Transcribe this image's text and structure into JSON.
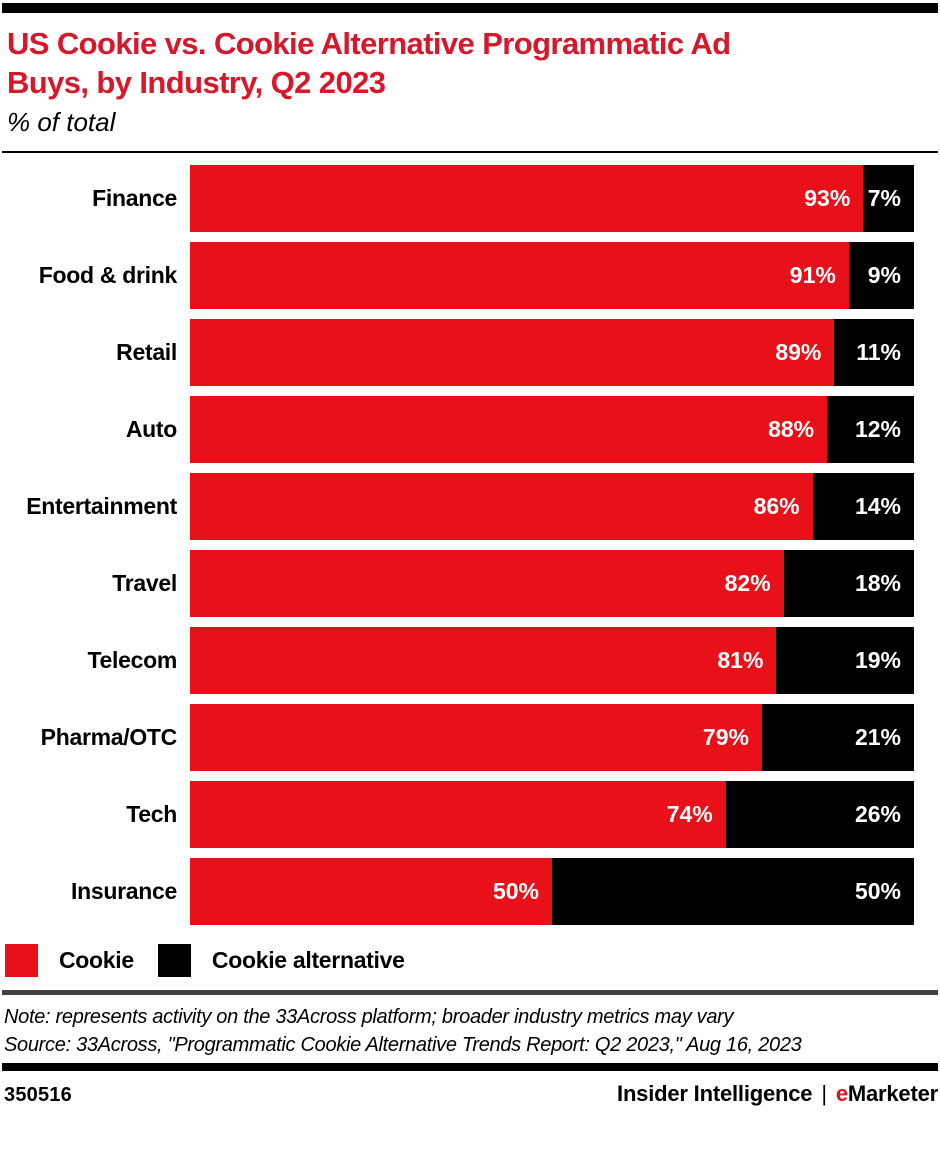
{
  "page": {
    "title": "US Cookie vs. Cookie Alternative Programmatic Ad Buys, by Industry, Q2 2023",
    "title_lines": [
      "US Cookie vs. Cookie Alternative Programmatic Ad",
      "Buys, by Industry, Q2 2023"
    ],
    "subtitle": "% of total"
  },
  "colors": {
    "title_red": "#d7172a",
    "cookie_red": "#e81019",
    "cookie_alternative_black": "#000000",
    "rule_gray": "#404040",
    "value_label_white": "#ffffff"
  },
  "chart_data": {
    "type": "bar",
    "orientation": "horizontal",
    "stacked": true,
    "unit": "%",
    "title": "US Cookie vs. Cookie Alternative Programmatic Ad Buys, by Industry, Q2 2023",
    "subtitle": "% of total",
    "categories": [
      "Finance",
      "Food & drink",
      "Retail",
      "Auto",
      "Entertainment",
      "Travel",
      "Telecom",
      "Pharma/OTC",
      "Tech",
      "Insurance"
    ],
    "series": [
      {
        "name": "Cookie",
        "color": "#e81019",
        "values": [
          93,
          91,
          89,
          88,
          86,
          82,
          81,
          79,
          74,
          50
        ]
      },
      {
        "name": "Cookie alternative",
        "color": "#000000",
        "values": [
          7,
          9,
          11,
          12,
          14,
          18,
          19,
          21,
          26,
          50
        ]
      }
    ],
    "xlim": [
      0,
      100
    ],
    "grid": false,
    "value_labels": "inside-right, white, percent",
    "legend_position": "bottom-left"
  },
  "legend": {
    "items": [
      {
        "label": "Cookie",
        "color": "#e81019"
      },
      {
        "label": "Cookie alternative",
        "color": "#000000"
      }
    ]
  },
  "notes": {
    "note": "Note: represents activity on the 33Across platform; broader industry metrics may vary",
    "source": "Source: 33Across, \"Programmatic Cookie Alternative Trends Report: Q2 2023,\" Aug 16, 2023"
  },
  "footer": {
    "chart_id": "350516",
    "brand_left": "Insider Intelligence",
    "separator": "|",
    "brand_e": "e",
    "brand_rest": "Marketer"
  }
}
